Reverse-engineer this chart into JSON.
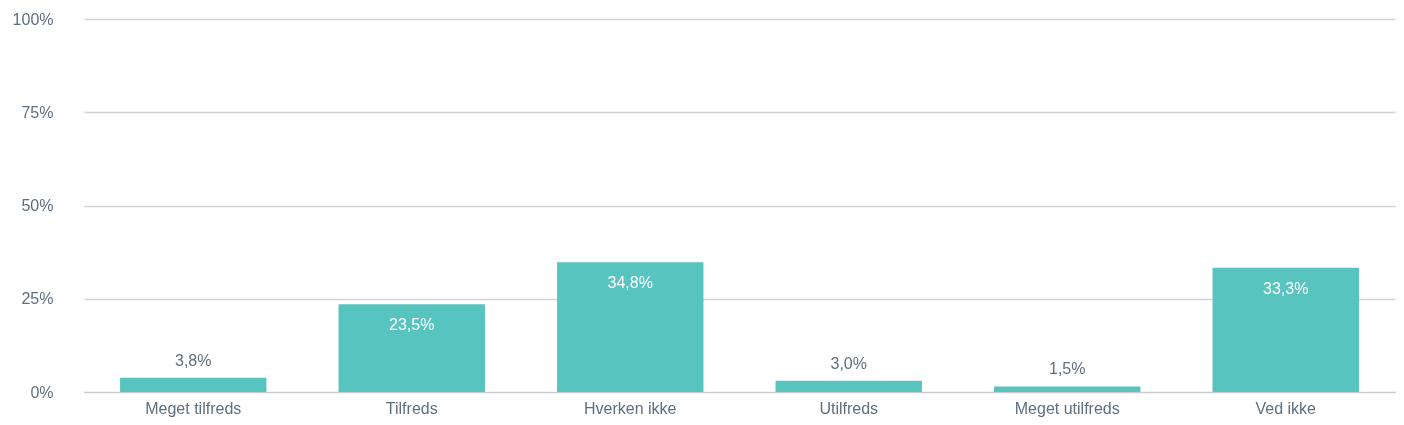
{
  "chart_data": {
    "type": "bar",
    "categories": [
      "Meget tilfreds",
      "Tilfreds",
      "Hverken ikke",
      "Utilfreds",
      "Meget utilfreds",
      "Ved ikke"
    ],
    "values": [
      3.8,
      23.5,
      34.8,
      3.0,
      1.5,
      33.3
    ],
    "value_labels": [
      "3,8%",
      "23,5%",
      "34,8%",
      "3,0%",
      "1,5%",
      "33,3%"
    ],
    "color": "#57c4bf",
    "ylim": [
      0,
      100
    ],
    "yticks": [
      {
        "value": 0,
        "label": "0%"
      },
      {
        "value": 25,
        "label": "25%"
      },
      {
        "value": 50,
        "label": "50%"
      },
      {
        "value": 75,
        "label": "75%"
      },
      {
        "value": 100,
        "label": "100%"
      }
    ],
    "grid": "y"
  }
}
